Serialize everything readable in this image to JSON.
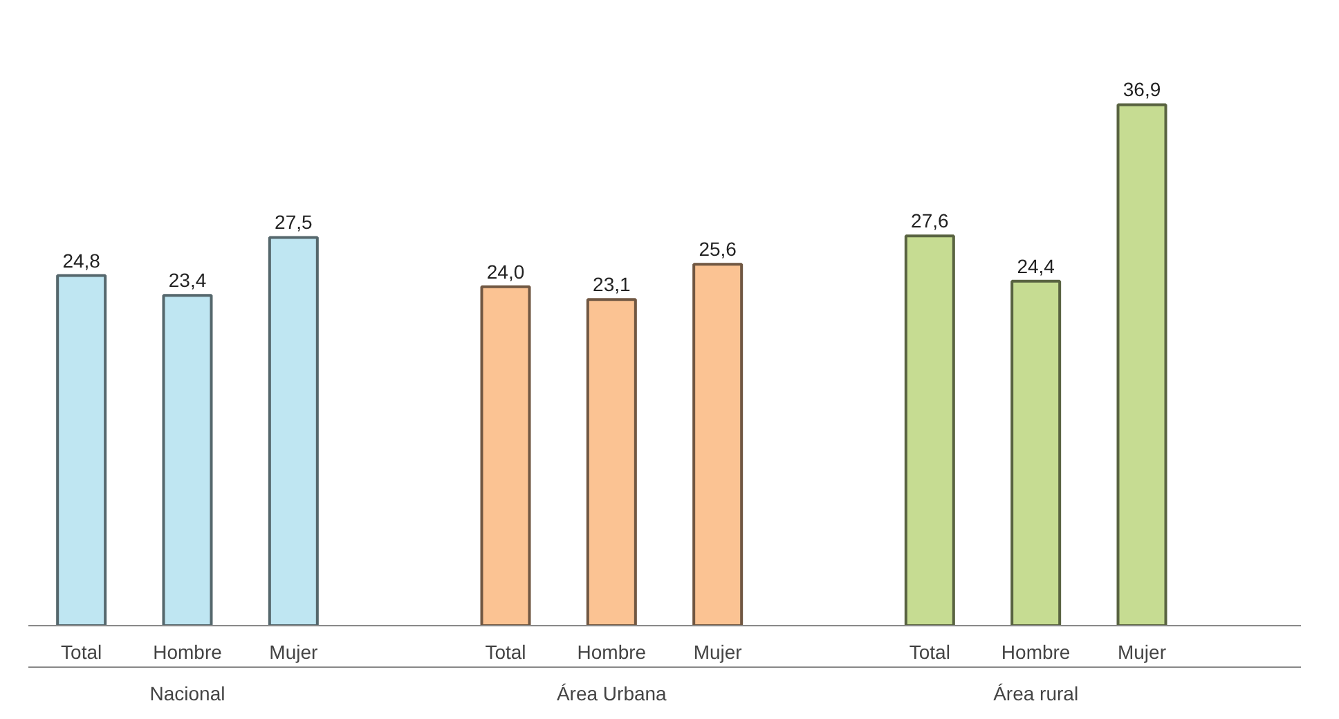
{
  "chart_data": {
    "type": "bar",
    "categories": [
      "Total",
      "Hombre",
      "Mujer",
      null,
      "Total",
      "Hombre",
      "Mujer",
      null,
      "Total",
      "Hombre",
      "Mujer",
      null
    ],
    "values": [
      24.8,
      23.4,
      27.5,
      null,
      24.0,
      23.1,
      25.6,
      null,
      27.6,
      24.4,
      36.9,
      null
    ],
    "value_labels": [
      "24,8",
      "23,4",
      "27,5",
      null,
      "24,0",
      "23,1",
      "25,6",
      null,
      "27,6",
      "24,4",
      "36,9",
      null
    ],
    "colors": [
      "#bfe6f2",
      "#bfe6f2",
      "#bfe6f2",
      "#bfe6f2",
      "#fbc393",
      "#fbc393",
      "#fbc393",
      "#fbc393",
      "#c6dc92",
      "#c6dc92",
      "#c6dc92",
      "#c6dc92"
    ],
    "annotations": [
      "Nacional",
      "Área Urbana",
      "Área rural"
    ]
  }
}
